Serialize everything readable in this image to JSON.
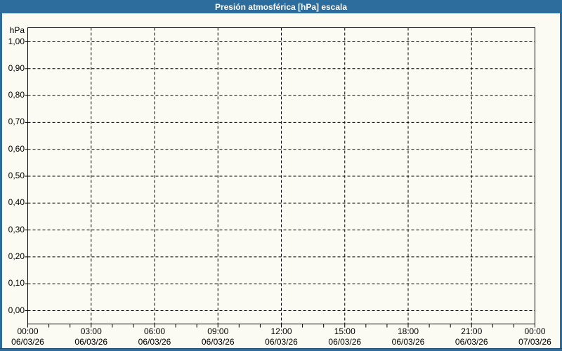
{
  "window": {
    "title": "Presión atmosférica [hPa] escala"
  },
  "colors": {
    "frame_blue": "#2d6d9e",
    "frame_dark_blue": "#1b4a70",
    "background": "#fbfbf3",
    "grid_line": "#000000",
    "plot_border": "#000000",
    "label_text": "#000000",
    "title_text": "#ffffff"
  },
  "chart_data": {
    "type": "line",
    "title": "Presión atmosférica [hPa] escala",
    "ylabel": "hPa",
    "xlabel": "",
    "ylim": [
      0.0,
      1.0
    ],
    "y_ticks": [
      "1,00",
      "0,90",
      "0,80",
      "0,70",
      "0,60",
      "0,50",
      "0,40",
      "0,30",
      "0,20",
      "0,10",
      "0,00"
    ],
    "y_tick_values": [
      1.0,
      0.9,
      0.8,
      0.7,
      0.6,
      0.5,
      0.4,
      0.3,
      0.2,
      0.1,
      0.0
    ],
    "x_ticks": [
      {
        "time": "00:00",
        "date": "06/03/26"
      },
      {
        "time": "03:00",
        "date": "06/03/26"
      },
      {
        "time": "06:00",
        "date": "06/03/26"
      },
      {
        "time": "09:00",
        "date": "06/03/26"
      },
      {
        "time": "12:00",
        "date": "06/03/26"
      },
      {
        "time": "15:00",
        "date": "06/03/26"
      },
      {
        "time": "18:00",
        "date": "06/03/26"
      },
      {
        "time": "21:00",
        "date": "06/03/26"
      },
      {
        "time": "00:00",
        "date": "07/03/26"
      }
    ],
    "x_span_hours": 24,
    "x_major_interval_hours": 3,
    "x_minor_interval_hours": 1,
    "grid": "dashed",
    "legend_position": "none",
    "series": []
  }
}
